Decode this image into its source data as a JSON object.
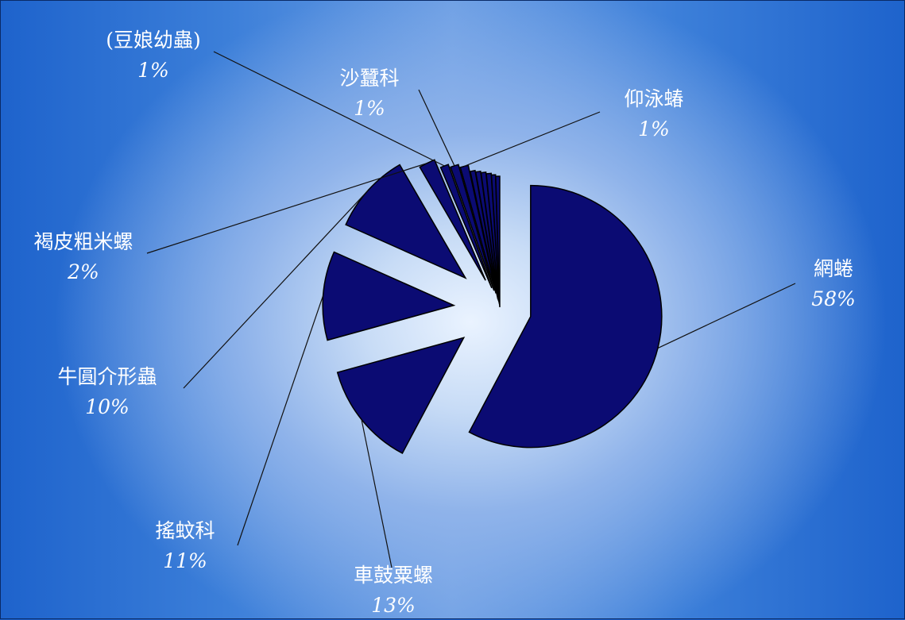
{
  "chart_data": {
    "type": "pie",
    "title": "",
    "legend": "none",
    "exploded": true,
    "colors": {
      "slice": "#0b0b73",
      "stroke": "#000000",
      "label": "#ffffff",
      "leader": "#111111"
    },
    "slices": [
      {
        "name": "網蜷",
        "value": 58,
        "label": "58%"
      },
      {
        "name": "車鼓粟螺",
        "value": 13,
        "label": "13%"
      },
      {
        "name": "搖蚊科",
        "value": 11,
        "label": "11%"
      },
      {
        "name": "牛圓介形蟲",
        "value": 10,
        "label": "10%"
      },
      {
        "name": "褐皮粗米螺",
        "value": 2,
        "label": "2%"
      },
      {
        "name": "(豆娘幼蟲)",
        "value": 1,
        "label": "1%"
      },
      {
        "name": "沙蠶科",
        "value": 1,
        "label": "1%"
      },
      {
        "name": "仰泳蝽",
        "value": 1,
        "label": "1%"
      },
      {
        "name": "",
        "value": 0.6
      },
      {
        "name": "",
        "value": 0.6
      },
      {
        "name": "",
        "value": 0.6
      },
      {
        "name": "",
        "value": 0.6
      },
      {
        "name": "",
        "value": 0.5
      },
      {
        "name": "",
        "value": 0.5
      }
    ]
  }
}
